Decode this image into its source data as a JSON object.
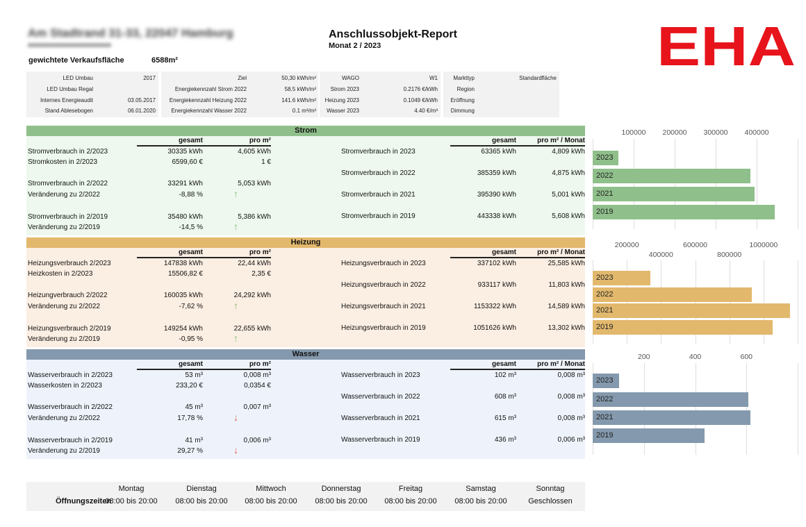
{
  "header": {
    "address": "Am Stadtrand 31-33, 22047 Hamburg",
    "area_label": "gewichtete Verkaufsfläche",
    "area_value": "6588m²",
    "title": "Anschlussobjekt-Report",
    "subtitle": "Monat 2 / 2023",
    "logo": "EHA",
    "logo_color": "#e8141c"
  },
  "info": [
    [
      [
        "LED Umbau",
        "2017"
      ],
      [
        "LED Umbau Regal",
        ""
      ],
      [
        "Internes Energieaudit",
        "03.05.2017"
      ],
      [
        "Stand Ablesebogen",
        "06.01.2020"
      ]
    ],
    [
      [
        "Ziel",
        "50,30 kWh/m²"
      ],
      [
        "Energiekennzahl Strom 2022",
        "58.5 kWh/m²"
      ],
      [
        "Energiekennzahl Heizung 2022",
        "141.6 kWh/m²"
      ],
      [
        "Energiekennzahl Wasser 2022",
        "0.1 m³/m²"
      ]
    ],
    [
      [
        "WAGO",
        "W1"
      ],
      [
        "Strom 2023",
        "0.2176 €/kWh"
      ],
      [
        "Heizung 2023",
        "0.1049 €/kWh"
      ],
      [
        "Wasser 2023",
        "4.40 €/m³"
      ]
    ],
    [
      [
        "Markttyp",
        "Standardfläche"
      ],
      [
        "Region",
        ""
      ],
      [
        "Eröffnung",
        ""
      ],
      [
        "Dimmung",
        ""
      ]
    ]
  ],
  "sections": [
    {
      "title": "Strom",
      "color": "#8fbf8a",
      "bg": "#eef8ee",
      "arrow": "↑",
      "arrow_color": "#7fbf7a",
      "col_gesamt": "gesamt",
      "col_pro": "pro m²",
      "col_monat": "pro m² / Monat",
      "left": [
        [
          "Stromverbrauch in 2/2023",
          "30335 kWh",
          "4,605 kWh"
        ],
        [
          "Stromkosten in 2/2023",
          "6599,60 €",
          "1 €"
        ],
        [
          "Stromverbrauch in 2/2022",
          "33291 kWh",
          "5,053 kWh"
        ],
        [
          "Veränderung zu 2/2022",
          "-8,88 %",
          ""
        ],
        [
          "Stromverbrauch in 2/2019",
          "35480 kWh",
          "5,386 kWh"
        ],
        [
          "Veränderung zu 2/2019",
          "-14,5 %",
          ""
        ]
      ],
      "right": [
        [
          "Stromverbrauch in 2023",
          "63365 kWh",
          "4,809 kWh"
        ],
        [
          "Stromverbrauch in 2022",
          "385359 kWh",
          "4,875 kWh"
        ],
        [
          "Stromverbrauch in 2021",
          "395390 kWh",
          "5,001 kWh"
        ],
        [
          "Stromverbrauch in 2019",
          "443338 kWh",
          "5,608 kWh"
        ]
      ]
    },
    {
      "title": "Heizung",
      "color": "#e2b86d",
      "bg": "#fbeee2",
      "arrow": "↑",
      "arrow_color": "#7fbf7a",
      "col_gesamt": "gesamt",
      "col_pro": "pro m²",
      "col_monat": "pro m² / Monat",
      "left": [
        [
          "Heizungsverbrauch 2/2023",
          "147838 kWh",
          "22,44 kWh"
        ],
        [
          "Heizkosten in 2/2023",
          "15506,82 €",
          "2,35 €"
        ],
        [
          "Heizungverbrauch 2/2022",
          "160035 kWh",
          "24,292 kWh"
        ],
        [
          "Veränderung zu 2/2022",
          "-7,62 %",
          ""
        ],
        [
          "Heizungsverbrauch 2/2019",
          "149254 kWh",
          "22,655 kWh"
        ],
        [
          "Veränderung zu 2/2019",
          "-0,95 %",
          ""
        ]
      ],
      "right": [
        [
          "Heizungsverbrauch in 2023",
          "337102 kWh",
          "25,585 kWh"
        ],
        [
          "Heizungsverbrauch in 2022",
          "933117 kWh",
          "11,803 kWh"
        ],
        [
          "Heizungsverbrauch in 2021",
          "1153322 kWh",
          "14,589 kWh"
        ],
        [
          "Heizungsverbrauch in 2019",
          "1051626 kWh",
          "13,302 kWh"
        ]
      ]
    },
    {
      "title": "Wasser",
      "color": "#8499ad",
      "bg": "#eef3fb",
      "arrow": "↓",
      "arrow_color": "#e0605a",
      "col_gesamt": "gesamt",
      "col_pro": "pro m²",
      "col_monat": "pro m² / Monat",
      "left": [
        [
          "Wasserverbrauch in 2/2023",
          "53 m³",
          "0,008 m³"
        ],
        [
          "Wasserkosten in 2/2023",
          "233,20 €",
          "0,0354 €"
        ],
        [
          "Wasserverbrauch in 2/2022",
          "45 m³",
          "0,007 m³"
        ],
        [
          "Veränderung zu 2/2022",
          "17,78 %",
          ""
        ],
        [
          "Wasserverbrauch in 2/2019",
          "41 m³",
          "0,006 m³"
        ],
        [
          "Veränderung zu 2/2019",
          "29,27 %",
          ""
        ]
      ],
      "right": [
        [
          "Wasserverbrauch in 2023",
          "102 m³",
          "0,008 m³"
        ],
        [
          "Wasserverbrauch in 2022",
          "608 m³",
          "0,008 m³"
        ],
        [
          "Wasserverbrauch in 2021",
          "615 m³",
          "0,008 m³"
        ],
        [
          "Wasserverbrauch in 2019",
          "436 m³",
          "0,006 m³"
        ]
      ]
    }
  ],
  "chart_data": [
    {
      "type": "bar",
      "title": "Strom",
      "categories": [
        "2023",
        "2022",
        "2021",
        "2019"
      ],
      "values": [
        63365,
        385359,
        395390,
        443338
      ],
      "xlim": [
        0,
        500000
      ],
      "ticks": [
        100000,
        200000,
        300000,
        400000
      ],
      "color": "#8fbf8a"
    },
    {
      "type": "bar",
      "title": "Heizung",
      "categories": [
        "2023",
        "2022",
        "2021",
        "2019"
      ],
      "values": [
        337102,
        933117,
        1153322,
        1051626
      ],
      "xlim": [
        0,
        1200000
      ],
      "ticks": [
        200000,
        400000,
        600000,
        800000,
        1000000
      ],
      "color": "#e2b86d"
    },
    {
      "type": "bar",
      "title": "Wasser",
      "categories": [
        "2023",
        "2022",
        "2021",
        "2019"
      ],
      "values": [
        102,
        608,
        615,
        436
      ],
      "xlim": [
        0,
        800
      ],
      "ticks": [
        200,
        400,
        600
      ],
      "color": "#8499ad"
    }
  ],
  "hours": {
    "row_label": "Öffnungszeiten",
    "days": [
      [
        "Montag",
        "08:00 bis 20:00"
      ],
      [
        "Dienstag",
        "08:00 bis 20:00"
      ],
      [
        "Mittwoch",
        "08:00 bis 20:00"
      ],
      [
        "Donnerstag",
        "08:00 bis 20:00"
      ],
      [
        "Freitag",
        "08:00 bis 20:00"
      ],
      [
        "Samstag",
        "08:00 bis 20:00"
      ],
      [
        "Sonntag",
        "Geschlossen"
      ]
    ]
  }
}
